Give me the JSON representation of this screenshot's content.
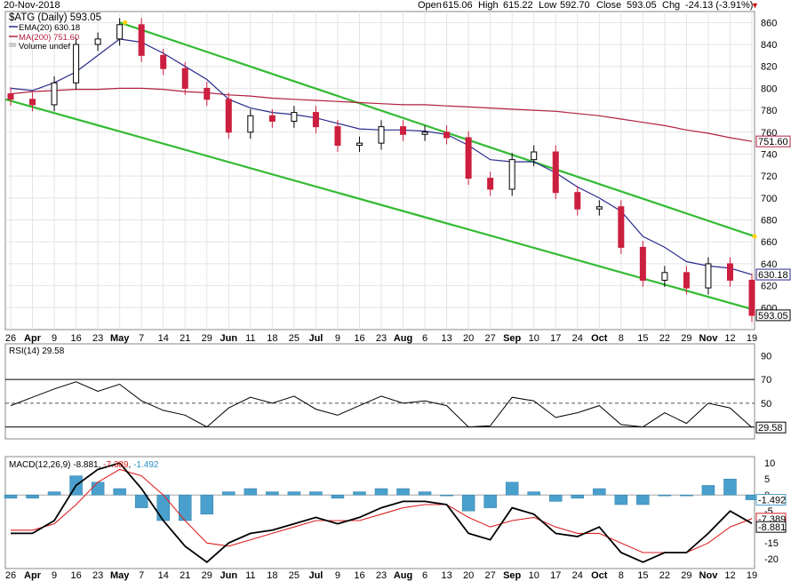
{
  "header": {
    "date": "20-Nov-2018",
    "open_label": "Open",
    "open_value": "615.06",
    "high_label": "High",
    "high_value": "615.22",
    "low_label": "Low",
    "low_value": "592.70",
    "close_label": "Close",
    "close_value": "593.05",
    "chg_label": "Chg",
    "chg_value": "-24.13 (-3.91%)",
    "chg_arrow": "▼",
    "down_color": "#cc0000"
  },
  "legend": {
    "symbol": "$ATG (Daily) 593.05",
    "ema": "EMA(20) 630.18",
    "ma": "MA(200) 751.60",
    "volume": "Volume undef"
  },
  "price_tags": {
    "close": "593.05",
    "ema": "630.18",
    "ma": "751.60"
  },
  "rsi": {
    "label": "RSI(14) 29.58",
    "tag": "29.58"
  },
  "macd": {
    "label_prefix": "MACD(12,26,9) ",
    "macd_value": "-8.881",
    "signal_value": "-7.389",
    "hist_value": "-1.492",
    "tags": {
      "hist": "-1.492",
      "signal": "-7.389",
      "macd": "-8.881"
    }
  },
  "x_axis_labels": [
    "26",
    "Apr",
    "9",
    "16",
    "23",
    "May",
    "7",
    "14",
    "21",
    "29",
    "Jun",
    "11",
    "18",
    "25",
    "Jul",
    "9",
    "16",
    "23",
    "Aug",
    "6",
    "13",
    "20",
    "27",
    "Sep",
    "10",
    "17",
    "24",
    "Oct",
    "8",
    "15",
    "22",
    "29",
    "Nov",
    "12",
    "19"
  ],
  "colors": {
    "up": "#ffffff",
    "down": "#cc1f3f",
    "ema": "#2a2a8c",
    "ma": "#b02040",
    "channel": "#33bb33",
    "hist": "#4aa0cc",
    "macd": "#000000",
    "signal": "#dd2222"
  },
  "chart_data": [
    {
      "type": "candlestick",
      "title": "$ATG (Daily) 593.05",
      "ylim": [
        580,
        870
      ],
      "y_ticks": [
        600,
        620,
        640,
        660,
        680,
        700,
        720,
        740,
        760,
        780,
        800,
        820,
        840,
        860
      ],
      "x": [
        "Mar 26",
        "Apr",
        "Apr 9",
        "Apr 16",
        "Apr 23",
        "May",
        "May 7",
        "May 14",
        "May 21",
        "May 29",
        "Jun",
        "Jun 11",
        "Jun 18",
        "Jun 25",
        "Jul",
        "Jul 9",
        "Jul 16",
        "Jul 23",
        "Aug",
        "Aug 6",
        "Aug 13",
        "Aug 20",
        "Aug 27",
        "Sep",
        "Sep 10",
        "Sep 17",
        "Sep 24",
        "Oct",
        "Oct 8",
        "Oct 15",
        "Oct 22",
        "Oct 29",
        "Nov",
        "Nov 12",
        "Nov 19"
      ],
      "close": [
        790,
        785,
        805,
        840,
        845,
        858,
        830,
        818,
        800,
        790,
        760,
        775,
        770,
        778,
        765,
        748,
        750,
        765,
        758,
        760,
        755,
        718,
        708,
        735,
        742,
        705,
        690,
        692,
        655,
        625,
        632,
        618,
        640,
        625,
        593
      ],
      "series": [
        {
          "name": "EMA(20) 630.18",
          "values": [
            800,
            798,
            805,
            815,
            830,
            845,
            842,
            832,
            820,
            808,
            790,
            782,
            778,
            776,
            773,
            768,
            763,
            762,
            762,
            761,
            758,
            748,
            735,
            733,
            733,
            723,
            710,
            700,
            688,
            665,
            655,
            642,
            638,
            636,
            630.18
          ]
        },
        {
          "name": "MA(200) 751.60",
          "values": [
            795,
            797,
            798,
            799,
            799,
            800,
            800,
            799,
            797,
            796,
            794,
            793,
            791,
            790,
            789,
            788,
            787,
            786,
            785,
            785,
            784,
            783,
            782,
            781,
            780,
            779,
            777,
            775,
            772,
            769,
            766,
            762,
            759,
            755,
            751.6
          ]
        }
      ],
      "annotations": [
        "channel upper line 860 → 665",
        "channel lower line 790 → 598"
      ]
    },
    {
      "type": "line",
      "title": "RSI(14) 29.58",
      "ylim": [
        20,
        100
      ],
      "y_ticks": [
        30,
        50,
        70,
        90
      ],
      "reference_lines": [
        70,
        50,
        30
      ],
      "x": [
        "Mar 26",
        "Apr",
        "Apr 9",
        "Apr 16",
        "Apr 23",
        "May",
        "May 7",
        "May 14",
        "May 21",
        "May 29",
        "Jun",
        "Jun 11",
        "Jun 18",
        "Jun 25",
        "Jul",
        "Jul 9",
        "Jul 16",
        "Jul 23",
        "Aug",
        "Aug 6",
        "Aug 13",
        "Aug 20",
        "Aug 27",
        "Sep",
        "Sep 10",
        "Sep 17",
        "Sep 24",
        "Oct",
        "Oct 8",
        "Oct 15",
        "Oct 22",
        "Oct 29",
        "Nov",
        "Nov 12",
        "Nov 19"
      ],
      "values": [
        48,
        55,
        62,
        68,
        60,
        66,
        52,
        44,
        40,
        30,
        46,
        55,
        50,
        56,
        45,
        40,
        48,
        56,
        50,
        52,
        48,
        30,
        31,
        55,
        52,
        38,
        42,
        48,
        32,
        30,
        42,
        33,
        50,
        46,
        29.58
      ]
    },
    {
      "type": "line",
      "title": "MACD(12,26,9) -8.881, -7.389, -1.492",
      "ylim": [
        -23,
        12
      ],
      "y_ticks": [
        10,
        5,
        0,
        -5,
        -10,
        -15,
        -20
      ],
      "x": [
        "Mar 26",
        "Apr",
        "Apr 9",
        "Apr 16",
        "Apr 23",
        "May",
        "May 7",
        "May 14",
        "May 21",
        "May 29",
        "Jun",
        "Jun 11",
        "Jun 18",
        "Jun 25",
        "Jul",
        "Jul 9",
        "Jul 16",
        "Jul 23",
        "Aug",
        "Aug 6",
        "Aug 13",
        "Aug 20",
        "Aug 27",
        "Sep",
        "Sep 10",
        "Sep 17",
        "Sep 24",
        "Oct",
        "Oct 8",
        "Oct 15",
        "Oct 22",
        "Oct 29",
        "Nov",
        "Nov 12",
        "Nov 19"
      ],
      "series": [
        {
          "name": "MACD",
          "values": [
            -12,
            -12,
            -8,
            3,
            8,
            10,
            2,
            -8,
            -16,
            -21,
            -15,
            -12,
            -11,
            -9,
            -7,
            -9,
            -7,
            -4,
            -2,
            -2,
            -3,
            -12,
            -14,
            -4,
            -6,
            -12,
            -13,
            -10,
            -18,
            -21,
            -18,
            -18,
            -12,
            -5,
            -8.881
          ]
        },
        {
          "name": "Signal",
          "values": [
            -11,
            -11,
            -9,
            -3,
            4,
            8,
            6,
            0,
            -8,
            -15,
            -16,
            -14,
            -12,
            -10,
            -8,
            -8,
            -8,
            -6,
            -4,
            -3,
            -3,
            -7,
            -10,
            -8,
            -7,
            -10,
            -12,
            -12,
            -15,
            -18,
            -18,
            -18,
            -15,
            -10,
            -7.389
          ]
        },
        {
          "name": "Histogram",
          "values": [
            -1,
            -1,
            1,
            6,
            4,
            2,
            -4,
            -8,
            -8,
            -6,
            1,
            2,
            1,
            1,
            1,
            -1,
            1,
            2,
            2,
            1,
            0,
            -5,
            -4,
            4,
            1,
            -2,
            -1,
            2,
            -3,
            -3,
            0,
            0,
            3,
            5,
            -1.492
          ]
        }
      ]
    }
  ]
}
